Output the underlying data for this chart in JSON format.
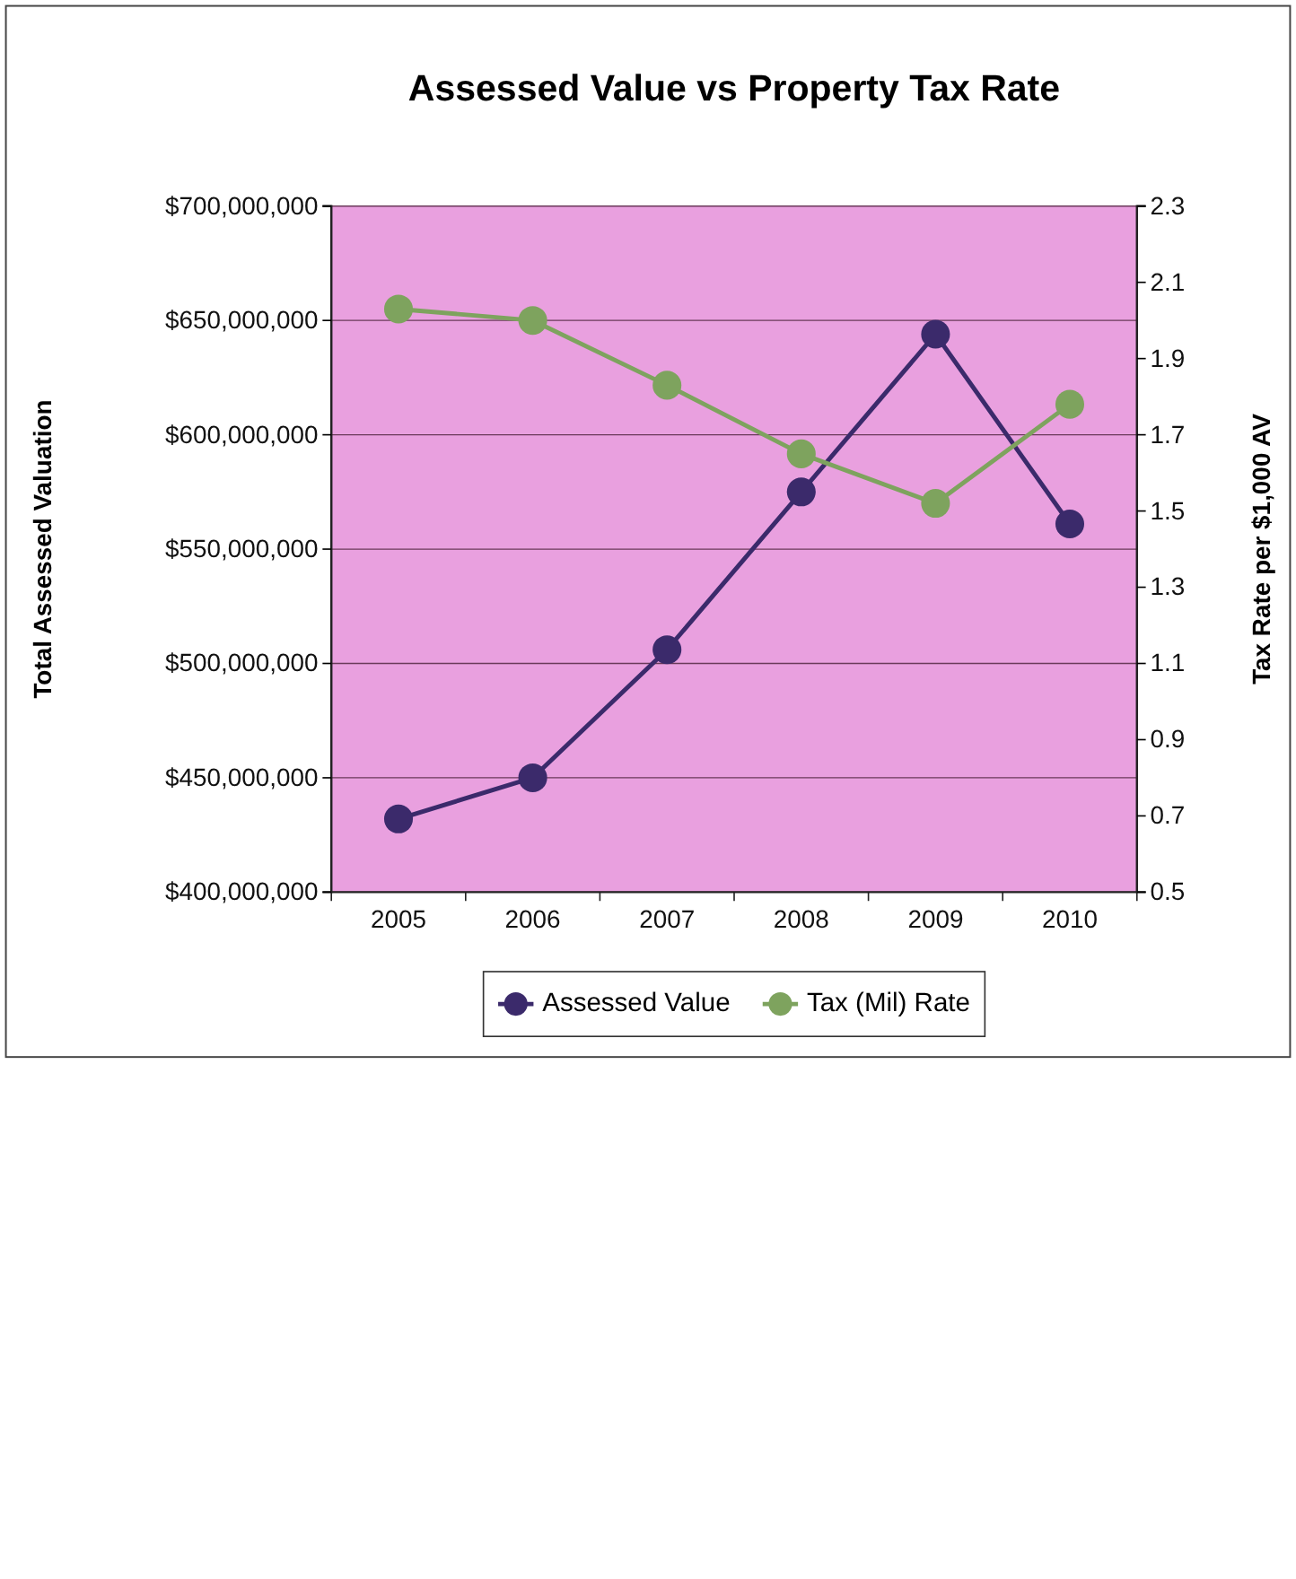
{
  "chart_data": {
    "type": "line",
    "title": "Assessed Value vs Property Tax Rate",
    "ylabel": "Total Assessed Valuation",
    "y2label": "Tax Rate per $1,000 AV",
    "categories": [
      "2005",
      "2006",
      "2007",
      "2008",
      "2009",
      "2010"
    ],
    "series": [
      {
        "name": "Assessed Value",
        "color": "#3b2a6b",
        "values": [
          432000000,
          450000000,
          506000000,
          575000000,
          644000000,
          561000000
        ]
      },
      {
        "name": "Tax (Mil) Rate",
        "color": "#7ea35e",
        "axis": "y2",
        "values": [
          2.03,
          2.0,
          1.83,
          1.65,
          1.52,
          1.78
        ]
      }
    ],
    "ylim": [
      400000000,
      700000000
    ],
    "yticks": [
      {
        "value": 400000000,
        "label": "$400,000,000"
      },
      {
        "value": 450000000,
        "label": "$450,000,000"
      },
      {
        "value": 500000000,
        "label": "$500,000,000"
      },
      {
        "value": 550000000,
        "label": "$550,000,000"
      },
      {
        "value": 600000000,
        "label": "$600,000,000"
      },
      {
        "value": 650000000,
        "label": "$650,000,000"
      },
      {
        "value": 700000000,
        "label": "$700,000,000"
      }
    ],
    "y2lim": [
      0.5,
      2.3
    ],
    "y2ticks": [
      0.5,
      0.7,
      0.9,
      1.1,
      1.3,
      1.5,
      1.7,
      1.9,
      2.1,
      2.3
    ],
    "grid": "y",
    "legend": "bottom",
    "marker": "circle",
    "line_style": "solid"
  }
}
